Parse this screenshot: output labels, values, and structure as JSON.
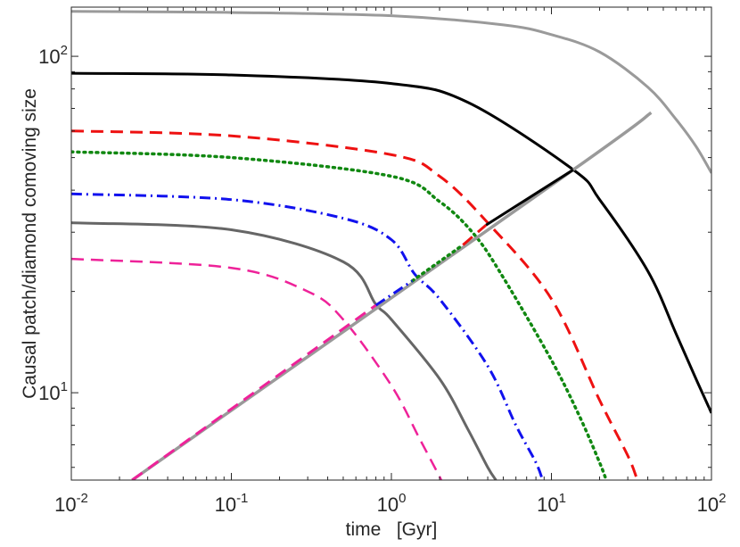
{
  "chart_data": {
    "type": "line",
    "xlabel": "time   [Gyr]",
    "ylabel": "Causal patch/diamond comoving size",
    "xscale": "log",
    "yscale": "log",
    "xlim": [
      0.01,
      100
    ],
    "ylim": [
      5.5,
      140
    ],
    "grid": false,
    "x_tick_labels": [
      {
        "value": 0.01,
        "base": "10",
        "exp": "-2"
      },
      {
        "value": 0.1,
        "base": "10",
        "exp": "-1"
      },
      {
        "value": 1,
        "base": "10",
        "exp": "0"
      },
      {
        "value": 10,
        "base": "10",
        "exp": "1"
      },
      {
        "value": 100,
        "base": "10",
        "exp": "2"
      }
    ],
    "y_tick_labels": [
      {
        "value": 10,
        "base": "10",
        "exp": "1"
      },
      {
        "value": 100,
        "base": "10",
        "exp": "2"
      }
    ],
    "series": [
      {
        "color": "#9a9a9a",
        "style": "solid",
        "width": 3,
        "x": [
          0.01,
          0.1,
          1,
          5,
          10,
          20,
          40,
          60,
          80,
          100
        ],
        "y": [
          136,
          135,
          132,
          124,
          116,
          103,
          81,
          65,
          54,
          45
        ]
      },
      {
        "color": "#000000",
        "style": "solid",
        "width": 3,
        "x": [
          0.01,
          0.1,
          1,
          3,
          13.7,
          20,
          40,
          60,
          80,
          100
        ],
        "y": [
          89,
          88,
          83,
          73,
          46,
          37.5,
          23,
          15,
          11,
          8.7
        ]
      },
      {
        "color": "#ee1111",
        "style": "dashed",
        "width": 3,
        "x": [
          0.01,
          0.1,
          1,
          2,
          4,
          10,
          20,
          30,
          34,
          34.7
        ],
        "y": [
          60,
          58,
          51,
          44,
          32,
          19,
          9.5,
          6.5,
          5.6,
          5.5
        ]
      },
      {
        "color": "#118811",
        "style": "dotted",
        "width": 3.5,
        "x": [
          0.01,
          0.1,
          1,
          2,
          3.3,
          5,
          10,
          15,
          20,
          22
        ],
        "y": [
          52,
          50,
          44,
          37,
          29.5,
          22,
          12.5,
          8.5,
          6.2,
          5.5
        ]
      },
      {
        "color": "#1111ee",
        "style": "dashdot",
        "width": 3,
        "x": [
          0.01,
          0.1,
          0.5,
          1,
          1.4,
          2,
          4,
          6,
          8,
          8.8
        ],
        "y": [
          39,
          37.5,
          33,
          28.5,
          22.5,
          19,
          12,
          8,
          6.2,
          5.5
        ]
      },
      {
        "color": "#666666",
        "style": "solid",
        "width": 3,
        "x": [
          0.01,
          0.1,
          0.5,
          0.8,
          1,
          2,
          3,
          4,
          4.5
        ],
        "y": [
          32,
          30.5,
          24.5,
          18.3,
          16.5,
          11,
          7.8,
          6,
          5.5
        ]
      },
      {
        "color": "#ee2299",
        "style": "dashed",
        "width": 2.5,
        "x": [
          0.01,
          0.1,
          0.3,
          0.5,
          1,
          1.5,
          1.9,
          2.05
        ],
        "y": [
          25,
          23.5,
          20,
          16.5,
          10.5,
          7.3,
          5.9,
          5.5
        ]
      },
      {
        "color": "#9a9a9a",
        "style": "solid",
        "width": 3.5,
        "x": [
          0.024,
          13.7,
          42
        ],
        "y": [
          5.5,
          46,
          68
        ]
      },
      {
        "color": "#000000",
        "style": "solid",
        "width": 3,
        "x": [
          3.9,
          13.7
        ],
        "y": [
          31.5,
          46
        ]
      },
      {
        "color": "#ee1111",
        "style": "dashed",
        "width": 3,
        "x": [
          2.8,
          3.9
        ],
        "y": [
          27.5,
          31.5
        ]
      },
      {
        "color": "#118811",
        "style": "dotted",
        "width": 3.5,
        "x": [
          1.35,
          2.8
        ],
        "y": [
          21.5,
          27.5
        ]
      },
      {
        "color": "#1111ee",
        "style": "dashdot",
        "width": 3,
        "x": [
          0.8,
          1.35
        ],
        "y": [
          18.2,
          21.5
        ]
      },
      {
        "color": "#ee2299",
        "style": "dashed",
        "width": 3,
        "x": [
          0.024,
          0.8
        ],
        "y": [
          5.5,
          18.2
        ]
      }
    ]
  }
}
